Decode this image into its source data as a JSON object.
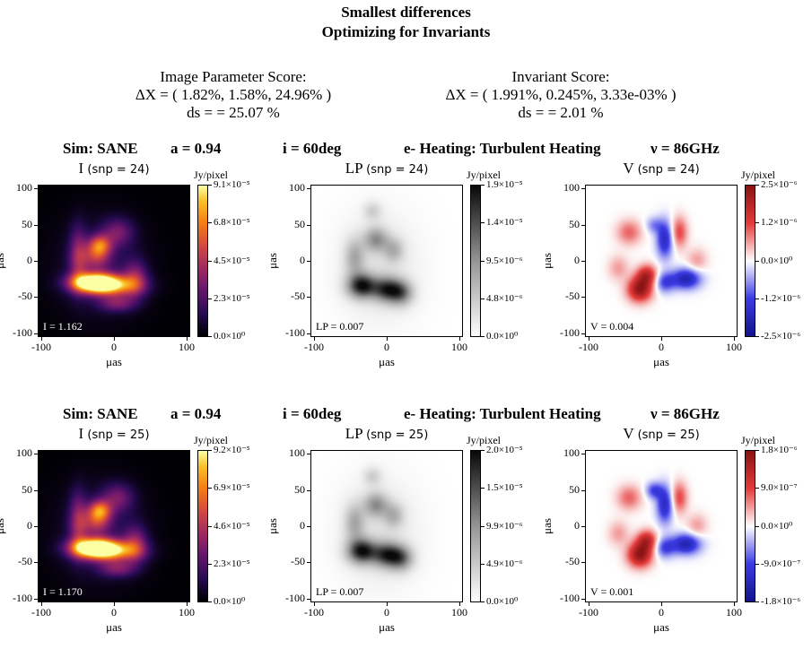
{
  "title_line1": "Smallest differences",
  "title_line2": "Optimizing for Invariants",
  "scores": {
    "image": {
      "label": "Image Parameter Score:",
      "dx": "ΔX = ( 1.82%, 1.58%, 24.96% )",
      "ds": "ds =  = 25.07 %"
    },
    "invariant": {
      "label": "Invariant Score:",
      "dx": "ΔX = ( 1.991%, 0.245%, 3.33e-03% )",
      "ds": "ds =  = 2.01 %"
    }
  },
  "params": {
    "sim": "Sim: SANE",
    "spin": "a = 0.94",
    "incl": "i = 60deg",
    "heating": "e- Heating: Turbulent Heating",
    "freq": "ν = 86GHz"
  },
  "axes": {
    "xlabel": "μas",
    "ylabel": "μas",
    "ticks": [
      "-100",
      "0",
      "100"
    ],
    "yticks": [
      "100",
      "50",
      "0",
      "-50",
      "-100"
    ],
    "unit": "Jy/pixel"
  },
  "rows": [
    {
      "panels": [
        {
          "label": "I",
          "snp": "(snp = 24)",
          "inset": "I = 1.162",
          "cmap": "inferno",
          "cbar": [
            "9.1×10⁻⁵",
            "6.8×10⁻⁵",
            "4.5×10⁻⁵",
            "2.3×10⁻⁵",
            "0.0×10⁰"
          ]
        },
        {
          "label": "LP",
          "snp": "(snp = 24)",
          "inset": "LP = 0.007",
          "cmap": "greys",
          "cbar": [
            "1.9×10⁻⁵",
            "1.4×10⁻⁵",
            "9.5×10⁻⁶",
            "4.8×10⁻⁶",
            "0.0×10⁰"
          ]
        },
        {
          "label": "V",
          "snp": "(snp = 24)",
          "inset": "V = 0.004",
          "cmap": "bwr",
          "cbar": [
            "2.5×10⁻⁶",
            "1.2×10⁻⁶",
            "0.0×10⁰",
            "-1.2×10⁻⁶",
            "-2.5×10⁻⁶"
          ]
        }
      ]
    },
    {
      "panels": [
        {
          "label": "I",
          "snp": "(snp = 25)",
          "inset": "I = 1.170",
          "cmap": "inferno",
          "cbar": [
            "9.2×10⁻⁵",
            "6.9×10⁻⁵",
            "4.6×10⁻⁵",
            "2.3×10⁻⁵",
            "0.0×10⁰"
          ]
        },
        {
          "label": "LP",
          "snp": "(snp = 25)",
          "inset": "LP = 0.007",
          "cmap": "greys",
          "cbar": [
            "2.0×10⁻⁵",
            "1.5×10⁻⁵",
            "9.9×10⁻⁶",
            "4.9×10⁻⁶",
            "0.0×10⁰"
          ]
        },
        {
          "label": "V",
          "snp": "(snp = 25)",
          "inset": "V = 0.001",
          "cmap": "bwr",
          "cbar": [
            "1.8×10⁻⁶",
            "9.0×10⁻⁷",
            "0.0×10⁰",
            "-9.0×10⁻⁷",
            "-1.8×10⁻⁶"
          ]
        }
      ]
    }
  ],
  "chart_data": {
    "type": "heatmap",
    "x_range": [
      -100,
      100
    ],
    "y_range": [
      -100,
      100
    ],
    "xlabel": "μas",
    "ylabel": "μas",
    "panels": [
      {
        "row": 0,
        "quantity": "I",
        "colormap": "inferno",
        "clim": [
          0.0,
          9.1e-05
        ],
        "total": 1.162
      },
      {
        "row": 0,
        "quantity": "LP",
        "colormap": "greys",
        "clim": [
          0.0,
          1.9e-05
        ],
        "total": 0.007
      },
      {
        "row": 0,
        "quantity": "V",
        "colormap": "bwr",
        "clim": [
          -2.5e-06,
          2.5e-06
        ],
        "total": 0.004
      },
      {
        "row": 1,
        "quantity": "I",
        "colormap": "inferno",
        "clim": [
          0.0,
          9.2e-05
        ],
        "total": 1.17
      },
      {
        "row": 1,
        "quantity": "LP",
        "colormap": "greys",
        "clim": [
          0.0,
          2e-05
        ],
        "total": 0.007
      },
      {
        "row": 1,
        "quantity": "V",
        "colormap": "bwr",
        "clim": [
          -1.8e-06,
          1.8e-06
        ],
        "total": 0.001
      }
    ]
  }
}
